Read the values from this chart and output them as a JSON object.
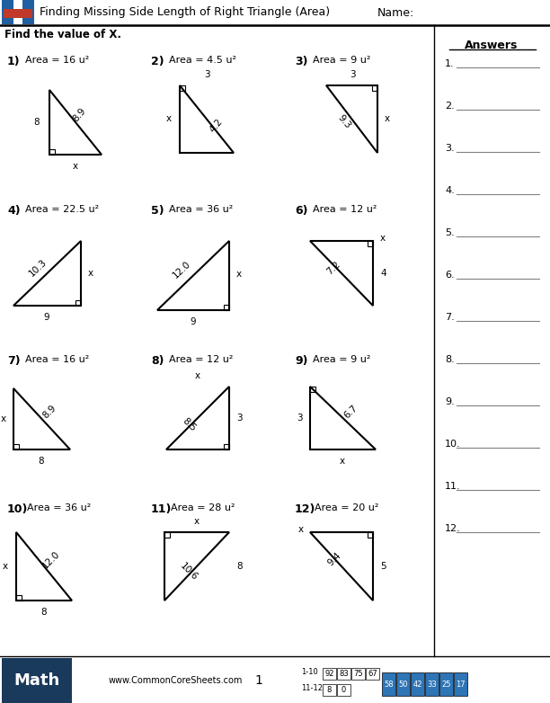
{
  "title": "Finding Missing Side Length of Right Triangle (Area)",
  "subtitle": "Find the value of X.",
  "name_label": "Name:",
  "background": "#ffffff",
  "answers_title": "Answers",
  "answer_lines": 12,
  "footer_math": "Math",
  "footer_url": "www.CommonCoreSheets.com",
  "footer_page": "1",
  "stat_labels": [
    "1-10",
    "11-12"
  ],
  "stat_vals1": [
    "92",
    "83",
    "75",
    "67"
  ],
  "stat_vals2": [
    "8",
    "0"
  ],
  "score_vals": [
    "58",
    "50",
    "42",
    "33",
    "25",
    "17"
  ]
}
